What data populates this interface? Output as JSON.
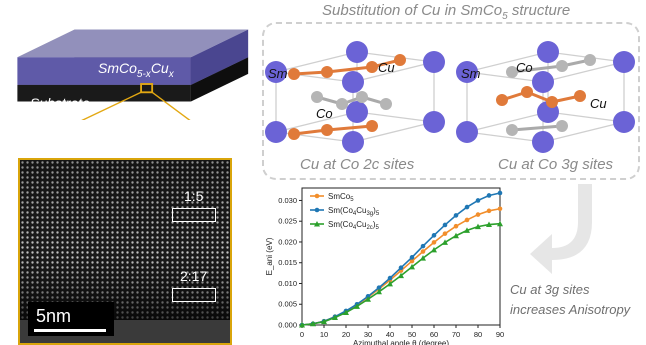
{
  "film": {
    "layer_label": "SmCo5-xCux",
    "layer_main": "SmCo",
    "layer_sub1": "5-x",
    "layer_cu": "Cu",
    "layer_sub2": "x",
    "substrate_label": "Substrate"
  },
  "stem": {
    "box1_label": "1:5",
    "box2_label": "2:17",
    "scale_bar_label": "5nm"
  },
  "structure": {
    "title": "Substitution of Cu in SmCo",
    "title_sub": "5",
    "title_tail": " structure",
    "left_caption": "Cu at Co 2c sites",
    "right_caption": "Cu at Co 3g sites",
    "atom_labels": {
      "sm_left": "Sm",
      "cu_left": "Cu",
      "co_left": "Co",
      "sm_right": "Sm",
      "co_right": "Co",
      "cu_right": "Cu"
    },
    "colors": {
      "sm": "#6b63d6",
      "co": "#b5b5b5",
      "cu": "#e07a3a",
      "cell": "#d2d2d2"
    }
  },
  "conclusion": {
    "line1": "Cu at 3g sites",
    "line2": "increases Anisotropy"
  },
  "chart_data": {
    "type": "line",
    "xlabel": "Azimuthal angle θ (degree)",
    "ylabel": "E_ani (eV)",
    "xlim": [
      0,
      90
    ],
    "ylim": [
      0,
      0.033
    ],
    "x_ticks": [
      0,
      10,
      20,
      30,
      40,
      50,
      60,
      70,
      80,
      90
    ],
    "y_ticks": [
      0.0,
      0.005,
      0.01,
      0.015,
      0.02,
      0.025,
      0.03
    ],
    "y_tick_labels": [
      "0.000",
      "0.005",
      "0.010",
      "0.015",
      "0.020",
      "0.025",
      "0.030"
    ],
    "x": [
      0,
      5,
      10,
      15,
      20,
      25,
      30,
      35,
      40,
      45,
      50,
      55,
      60,
      65,
      70,
      75,
      80,
      85,
      90
    ],
    "legend_position": "top-left",
    "series": [
      {
        "name": "SmCo5",
        "name_main": "SmCo",
        "name_sub": "5",
        "color": "#f28e2b",
        "marker": "circle",
        "values": [
          0.0,
          0.0003,
          0.0009,
          0.002,
          0.0033,
          0.0049,
          0.0067,
          0.0087,
          0.0108,
          0.0131,
          0.0154,
          0.0177,
          0.0199,
          0.022,
          0.0238,
          0.0253,
          0.0266,
          0.0275,
          0.028
        ]
      },
      {
        "name": "Sm(Co4Cu3g)5",
        "name_main": "Sm(Co",
        "name_sub1": "4",
        "name_mid": "Cu",
        "name_sub2": "3g",
        "name_close": ")",
        "name_sub3": "5",
        "color": "#1f77b4",
        "marker": "circle",
        "values": [
          0.0,
          0.0003,
          0.0009,
          0.002,
          0.0034,
          0.005,
          0.0069,
          0.009,
          0.0113,
          0.0138,
          0.0163,
          0.019,
          0.0216,
          0.0241,
          0.0264,
          0.0284,
          0.03,
          0.0312,
          0.0318
        ]
      },
      {
        "name": "Sm(Co4Cu2c)5",
        "name_main": "Sm(Co",
        "name_sub1": "4",
        "name_mid": "Cu",
        "name_sub2": "2c",
        "name_close": ")",
        "name_sub3": "5",
        "color": "#2ca02c",
        "marker": "triangle",
        "values": [
          0.0,
          0.0003,
          0.0008,
          0.0018,
          0.003,
          0.0045,
          0.0062,
          0.008,
          0.0099,
          0.0119,
          0.014,
          0.0161,
          0.0181,
          0.0199,
          0.0215,
          0.0228,
          0.0237,
          0.0242,
          0.0244
        ]
      }
    ]
  }
}
